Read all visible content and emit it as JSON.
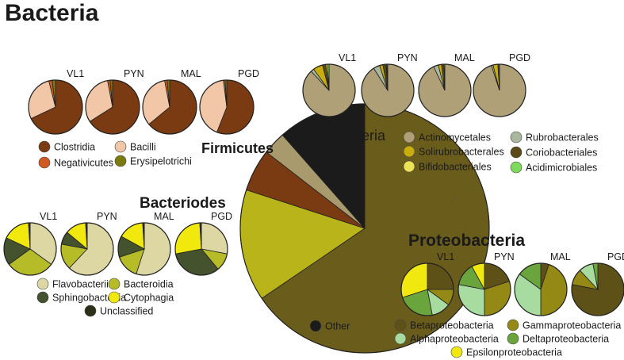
{
  "title": "Bacteria",
  "colors": {
    "other": "#1b1b1b",
    "firmicutes": "#7a3a12",
    "actinobacteria": "#a99a6e",
    "bacteriodes": "#b8b41a",
    "proteobacteria": "#6a5d1c"
  },
  "chart_data": [
    {
      "type": "pie",
      "name": "main",
      "slices": [
        {
          "label": "Proteobacteria",
          "value": 65.5,
          "color": "#6a5d1c"
        },
        {
          "label": "Bacteriodes",
          "value": 14.5,
          "color": "#b8b41a"
        },
        {
          "label": "Firmicutes",
          "value": 5.5,
          "color": "#7a3a12"
        },
        {
          "label": "Actinobacteria",
          "value": 3.0,
          "color": "#a99a6e"
        },
        {
          "label": "Other",
          "value": 11.5,
          "color": "#1b1b1b"
        }
      ],
      "labels": {
        "firmicutes": "Firmicutes",
        "actinobacteria": "Actinobacteria",
        "bacteriodes": "Bacteriodes",
        "proteobacteria": "Proteobacteria"
      },
      "legend": [
        {
          "label": "Other",
          "color": "#1b1b1b"
        }
      ]
    },
    {
      "type": "pie",
      "name": "firmicutes",
      "samples": [
        "VL1",
        "PYN",
        "MAL",
        "PGD"
      ],
      "categories": [
        "Clostridia",
        "Bacilli",
        "Negativicutes",
        "Erysipelotrichi"
      ],
      "colors": [
        "#7a3a12",
        "#f2c7a8",
        "#cf5a22",
        "#7a7a0e"
      ],
      "values": [
        [
          68,
          28,
          2,
          2
        ],
        [
          66,
          31,
          1.5,
          1.5
        ],
        [
          64,
          33,
          1.5,
          1.5
        ],
        [
          56,
          42,
          1,
          1
        ]
      ]
    },
    {
      "type": "pie",
      "name": "actinobacteria",
      "samples": [
        "VL1",
        "PYN",
        "MAL",
        "PGD"
      ],
      "categories": [
        "Actinomycetales",
        "Rubrobacterales",
        "Solirubrobacterales",
        "Coriobacteriales",
        "Bifidobacteriales",
        "Acidimicrobiales"
      ],
      "colors": [
        "#b0a077",
        "#a9b79f",
        "#c9ad0d",
        "#5a4a16",
        "#ede256",
        "#7fd95a"
      ],
      "values": [
        [
          88,
          2,
          6,
          2,
          1,
          1
        ],
        [
          91,
          4,
          2,
          2,
          0.5,
          0.5
        ],
        [
          93,
          3,
          2,
          1.5,
          0.5,
          0
        ],
        [
          95,
          1,
          3,
          1,
          0,
          0
        ]
      ]
    },
    {
      "type": "pie",
      "name": "bacteriodes",
      "samples": [
        "VL1",
        "PYN",
        "MAL",
        "PGD"
      ],
      "categories": [
        "Flavobacteriia",
        "Bacteroidia",
        "Sphingobacteriia",
        "Cytophagia",
        "Unclassified"
      ],
      "colors": [
        "#ddd7a3",
        "#b6bb28",
        "#44522e",
        "#f1e90d",
        "#2d3016"
      ],
      "values": [
        [
          35,
          30,
          17,
          17,
          1
        ],
        [
          62,
          16,
          8,
          13,
          1
        ],
        [
          55,
          15,
          13,
          16,
          1
        ],
        [
          28,
          11,
          33,
          27,
          1
        ]
      ]
    },
    {
      "type": "pie",
      "name": "proteobacteria",
      "samples": [
        "VL1",
        "PYN",
        "MAL",
        "PGD"
      ],
      "categories": [
        "Betaproteobacteria",
        "Gammaproteobacteria",
        "Alphaproteobacteria",
        "Deltaproteobacteria",
        "Epsilonproteobacteria"
      ],
      "colors": [
        "#5e5117",
        "#948914",
        "#a8dba0",
        "#6aa43c",
        "#f1e80f"
      ],
      "values": [
        [
          25,
          10,
          12,
          23,
          30
        ],
        [
          20,
          30,
          28,
          14,
          8
        ],
        [
          5,
          45,
          35,
          15,
          0
        ],
        [
          78,
          10,
          9,
          3,
          0
        ]
      ]
    }
  ]
}
